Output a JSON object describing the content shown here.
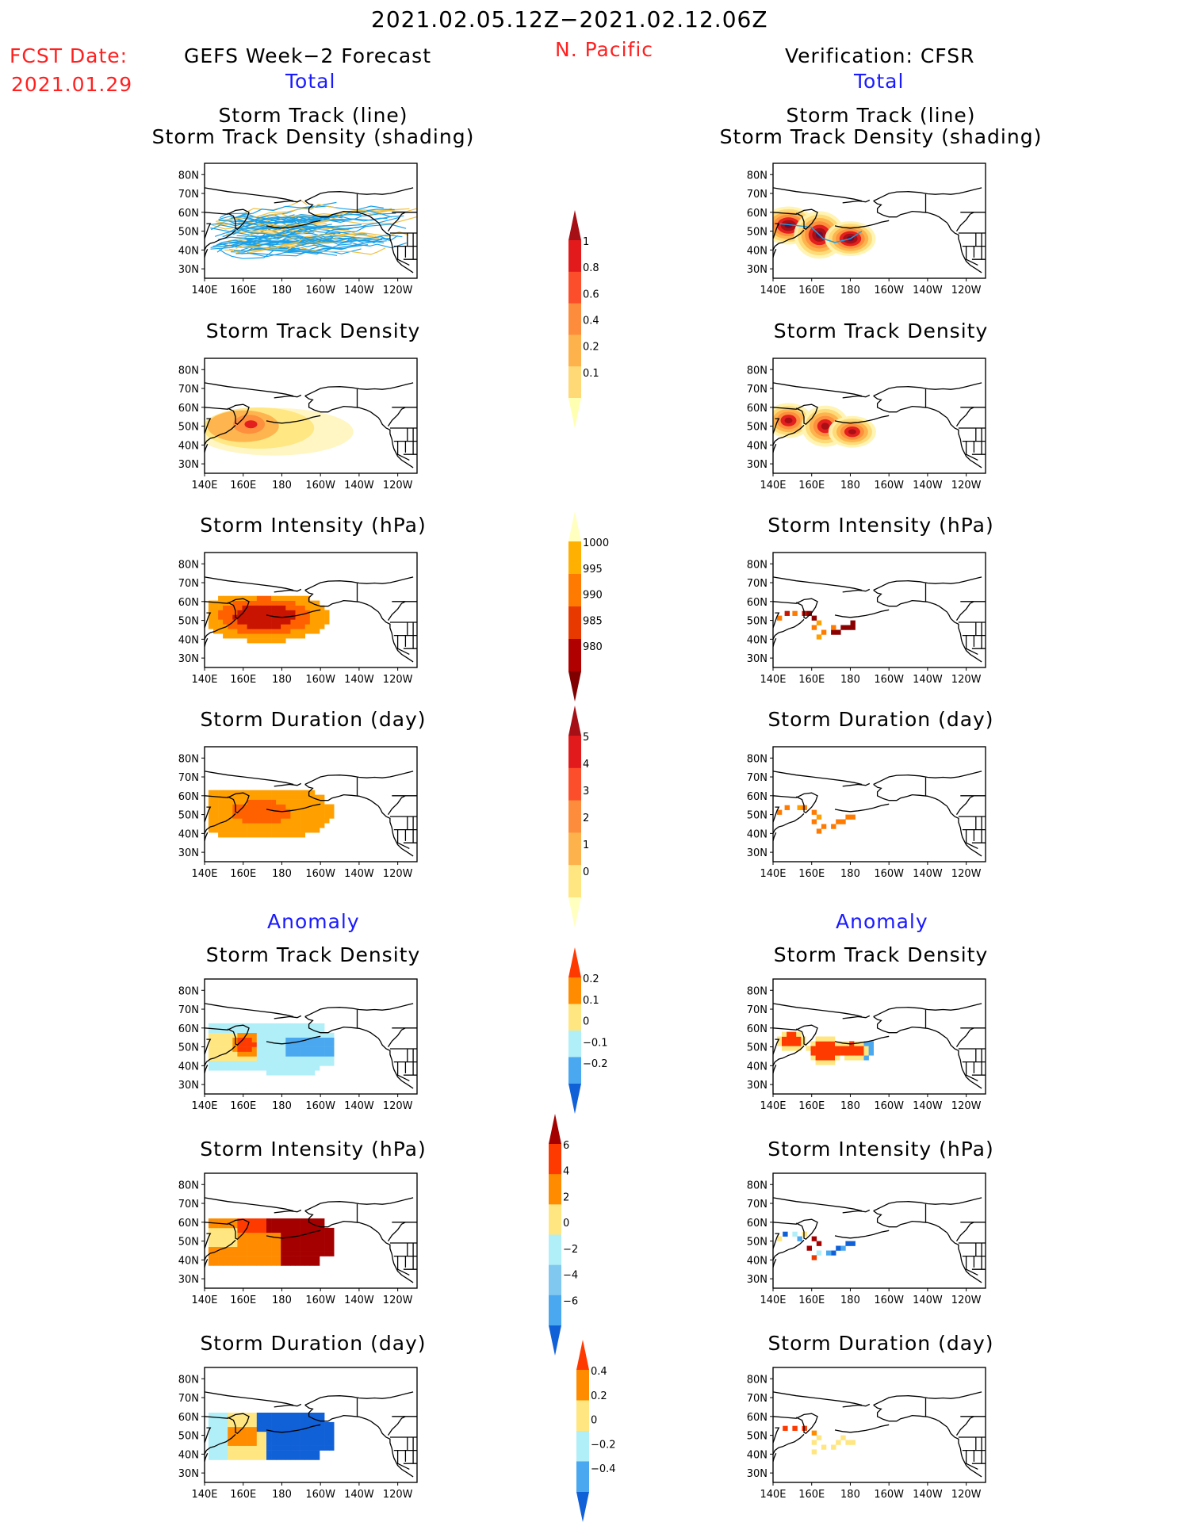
{
  "header": {
    "date_range": "2021.02.05.12Z−2021.02.12.06Z",
    "region": "N. Pacific",
    "fcst_label": "FCST Date:",
    "fcst_date": "2021.01.29",
    "left_title": "GEFS Week−2 Forecast",
    "right_title": "Verification: CFSR",
    "total_label": "Total",
    "anomaly_label": "Anomaly"
  },
  "panel_titles": {
    "track_line": "Storm Track (line)",
    "track_shading": "Storm Track Density (shading)",
    "density": "Storm Track Density",
    "intensity": "Storm Intensity (hPa)",
    "duration": "Storm Duration (day)"
  },
  "axes": {
    "lat_ticks": [
      "80N",
      "70N",
      "60N",
      "50N",
      "40N",
      "30N"
    ],
    "lon_ticks": [
      "140E",
      "160E",
      "180",
      "160W",
      "140W",
      "120W"
    ]
  },
  "colorbars": [
    {
      "name": "total-density",
      "labels": [
        "1",
        "0.8",
        "0.6",
        "0.4",
        "0.2",
        "0.1"
      ],
      "colors": [
        "#a50f15",
        "#e31a1c",
        "#fc4e2a",
        "#fd8d3c",
        "#feb24c",
        "#fed976",
        "#ffffb2"
      ]
    },
    {
      "name": "total-intensity",
      "labels": [
        "1000",
        "995",
        "990",
        "985",
        "980"
      ],
      "colors": [
        "#ffffc0",
        "#ffb000",
        "#ff7a00",
        "#e83a00",
        "#b00000",
        "#800000"
      ]
    },
    {
      "name": "total-duration",
      "labels": [
        "5",
        "4",
        "3",
        "2",
        "1",
        "0"
      ],
      "colors": [
        "#a50f15",
        "#e31a1c",
        "#fc4e2a",
        "#fd8d3c",
        "#feb24c",
        "#ffe680",
        "#ffffc0"
      ]
    },
    {
      "name": "anom-density",
      "labels": [
        "0.2",
        "0.1",
        "0",
        "−0.1",
        "−0.2"
      ],
      "colors": [
        "#ff3a00",
        "#ff8c00",
        "#ffe680",
        "#b0eef8",
        "#4aa8f0",
        "#1060d8"
      ]
    },
    {
      "name": "anom-intensity",
      "labels": [
        "6",
        "4",
        "2",
        "0",
        "−2",
        "−4",
        "−6"
      ],
      "colors": [
        "#a50000",
        "#ff3a00",
        "#ff8c00",
        "#ffe680",
        "#b0eef8",
        "#80c8f0",
        "#4aa8f0",
        "#1060d8"
      ]
    },
    {
      "name": "anom-duration",
      "labels": [
        "0.4",
        "0.2",
        "0",
        "−0.2",
        "−0.4"
      ],
      "colors": [
        "#ff3a00",
        "#ff8c00",
        "#ffe680",
        "#b0eef8",
        "#4aa8f0",
        "#1060d8"
      ]
    }
  ]
}
